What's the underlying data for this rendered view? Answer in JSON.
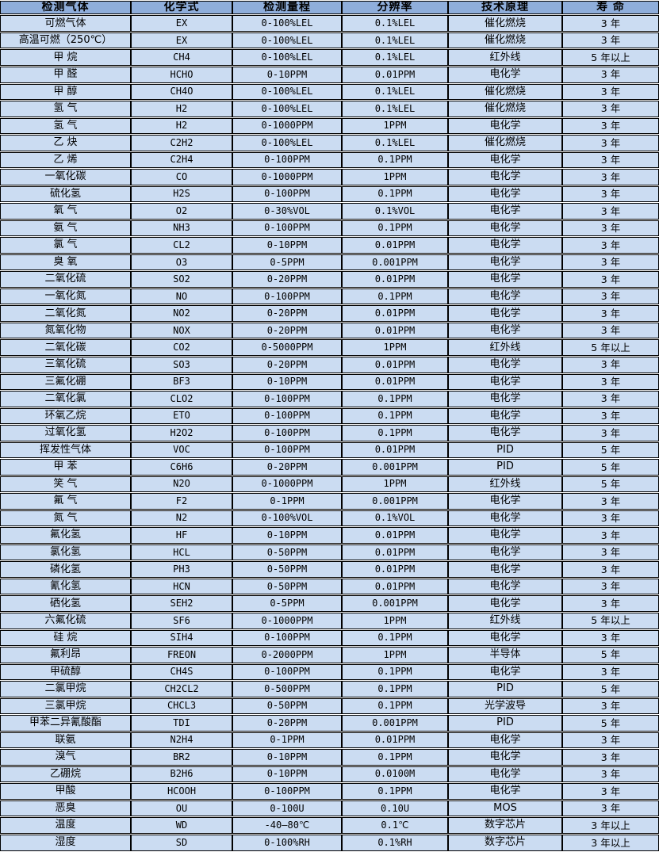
{
  "table": {
    "title": "gas-sensor-spec-table",
    "colors": {
      "header_bg": "#8FAEDB",
      "row_bg": "#CBDCF2",
      "border": "#000000",
      "text": "#000000"
    },
    "headers": [
      "检测气体",
      "化学式",
      "检测量程",
      "分辨率",
      "技术原理",
      "寿 命"
    ],
    "rows": [
      [
        "可燃气体",
        "EX",
        "0-100%LEL",
        "0.1%LEL",
        "催化燃烧",
        "3 年"
      ],
      [
        "高温可燃（250℃）",
        "EX",
        "0-100%LEL",
        "0.1%LEL",
        "催化燃烧",
        "3 年"
      ],
      [
        "甲 烷",
        "CH4",
        "0-100%LEL",
        "0.1%LEL",
        "红外线",
        "5 年以上"
      ],
      [
        "甲 醛",
        "HCHO",
        "0-10PPM",
        "0.01PPM",
        "电化学",
        "3 年"
      ],
      [
        "甲 醇",
        "CH4O",
        "0-100%LEL",
        "0.1%LEL",
        "催化燃烧",
        "3 年"
      ],
      [
        "氢 气",
        "H2",
        "0-100%LEL",
        "0.1%LEL",
        "催化燃烧",
        "3 年"
      ],
      [
        "氢 气",
        "H2",
        "0-1000PPM",
        "1PPM",
        "电化学",
        "3 年"
      ],
      [
        "乙 炔",
        "C2H2",
        "0-100%LEL",
        "0.1%LEL",
        "催化燃烧",
        "3 年"
      ],
      [
        "乙 烯",
        "C2H4",
        "0-100PPM",
        "0.1PPM",
        "电化学",
        "3 年"
      ],
      [
        "一氧化碳",
        "CO",
        "0-1000PPM",
        "1PPM",
        "电化学",
        "3 年"
      ],
      [
        "硫化氢",
        "H2S",
        "0-100PPM",
        "0.1PPM",
        "电化学",
        "3 年"
      ],
      [
        "氧 气",
        "O2",
        "0-30%VOL",
        "0.1%VOL",
        "电化学",
        "3 年"
      ],
      [
        "氨 气",
        "NH3",
        "0-100PPM",
        "0.1PPM",
        "电化学",
        "3 年"
      ],
      [
        "氯 气",
        "CL2",
        "0-10PPM",
        "0.01PPM",
        "电化学",
        "3 年"
      ],
      [
        "臭 氧",
        "O3",
        "0-5PPM",
        "0.001PPM",
        "电化学",
        "3 年"
      ],
      [
        "二氧化硫",
        "SO2",
        "0-20PPM",
        "0.01PPM",
        "电化学",
        "3 年"
      ],
      [
        "一氧化氮",
        "NO",
        "0-100PPM",
        "0.1PPM",
        "电化学",
        "3 年"
      ],
      [
        "二氧化氮",
        "NO2",
        "0-20PPM",
        "0.01PPM",
        "电化学",
        "3 年"
      ],
      [
        "氮氧化物",
        "NOX",
        "0-20PPM",
        "0.01PPM",
        "电化学",
        "3 年"
      ],
      [
        "二氧化碳",
        "CO2",
        "0-5000PPM",
        "1PPM",
        "红外线",
        "5 年以上"
      ],
      [
        "三氧化硫",
        "SO3",
        "0-20PPM",
        "0.01PPM",
        "电化学",
        "3 年"
      ],
      [
        "三氟化硼",
        "BF3",
        "0-10PPM",
        "0.01PPM",
        "电化学",
        "3 年"
      ],
      [
        "二氧化氯",
        "CLO2",
        "0-100PPM",
        "0.1PPM",
        "电化学",
        "3 年"
      ],
      [
        "环氧乙烷",
        "ETO",
        "0-100PPM",
        "0.1PPM",
        "电化学",
        "3 年"
      ],
      [
        "过氧化氢",
        "H2O2",
        "0-100PPM",
        "0.1PPM",
        "电化学",
        "3 年"
      ],
      [
        "挥发性气体",
        "VOC",
        "0-100PPM",
        "0.01PPM",
        "PID",
        "5 年"
      ],
      [
        "甲 苯",
        "C6H6",
        "0-20PPM",
        "0.001PPM",
        "PID",
        "5 年"
      ],
      [
        "笑 气",
        "N2O",
        "0-1000PPM",
        "1PPM",
        "红外线",
        "5 年"
      ],
      [
        "氟 气",
        "F2",
        "0-1PPM",
        "0.001PPM",
        "电化学",
        "3 年"
      ],
      [
        "氮 气",
        "N2",
        "0-100%VOL",
        "0.1%VOL",
        "电化学",
        "3 年"
      ],
      [
        "氟化氢",
        "HF",
        "0-10PPM",
        "0.01PPM",
        "电化学",
        "3 年"
      ],
      [
        "氯化氢",
        "HCL",
        "0-50PPM",
        "0.01PPM",
        "电化学",
        "3 年"
      ],
      [
        "磷化氢",
        "PH3",
        "0-50PPM",
        "0.01PPM",
        "电化学",
        "3 年"
      ],
      [
        "氰化氢",
        "HCN",
        "0-50PPM",
        "0.01PPM",
        "电化学",
        "3 年"
      ],
      [
        "硒化氢",
        "SEH2",
        "0-5PPM",
        "0.001PPM",
        "电化学",
        "3 年"
      ],
      [
        "六氟化硫",
        "SF6",
        "0-1000PPM",
        "1PPM",
        "红外线",
        "5 年以上"
      ],
      [
        "硅 烷",
        "SIH4",
        "0-100PPM",
        "0.1PPM",
        "电化学",
        "3 年"
      ],
      [
        "氟利昂",
        "FREON",
        "0-2000PPM",
        "1PPM",
        "半导体",
        "5 年"
      ],
      [
        "甲硫醇",
        "CH4S",
        "0-100PPM",
        "0.1PPM",
        "电化学",
        "3 年"
      ],
      [
        "二氯甲烷",
        "CH2CL2",
        "0-500PPM",
        "0.1PPM",
        "PID",
        "5 年"
      ],
      [
        "三氯甲烷",
        "CHCL3",
        "0-50PPM",
        "0.1PPM",
        "光学波导",
        "3 年"
      ],
      [
        "甲苯二异氰酸酯",
        "TDI",
        "0-20PPM",
        "0.001PPM",
        "PID",
        "5 年"
      ],
      [
        "联氨",
        "N2H4",
        "0-1PPM",
        "0.01PPM",
        "电化学",
        "3 年"
      ],
      [
        "溴气",
        "BR2",
        "0-10PPM",
        "0.1PPM",
        "电化学",
        "3 年"
      ],
      [
        "乙硼烷",
        "B2H6",
        "0-10PPM",
        "0.0100M",
        "电化学",
        "3 年"
      ],
      [
        "甲酸",
        "HCOOH",
        "0-100PPM",
        "0.1PPM",
        "电化学",
        "3 年"
      ],
      [
        "恶臭",
        "OU",
        "0-100U",
        "0.10U",
        "MOS",
        "3 年"
      ],
      [
        "温度",
        "WD",
        "-40—80℃",
        "0.1℃",
        "数字芯片",
        "3 年以上"
      ],
      [
        "湿度",
        "SD",
        "0-100%RH",
        "0.1%RH",
        "数字芯片",
        "3 年以上"
      ]
    ]
  }
}
